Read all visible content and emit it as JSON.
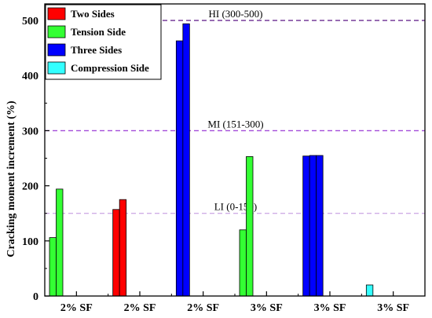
{
  "chart_data": {
    "type": "bar",
    "ylabel": "Cracking moment increment (%)",
    "xlabel": "",
    "title": "",
    "ylim": [
      0,
      530
    ],
    "yticks": [
      0,
      100,
      200,
      300,
      400,
      500
    ],
    "categories": [
      "2% SF",
      "2% SF",
      "2% SF",
      "3% SF",
      "3% SF",
      "3% SF"
    ],
    "legend_position": "top-left",
    "series": [
      {
        "name": "Two Sides",
        "color": "#ff0000"
      },
      {
        "name": "Tension Side",
        "color": "#33ff33"
      },
      {
        "name": "Three Sides",
        "color": "#0000ff"
      },
      {
        "name": "Compression Side",
        "color": "#33ffff"
      }
    ],
    "groups": [
      {
        "category_index": 0,
        "series_index": 1,
        "values": [
          106,
          194
        ]
      },
      {
        "category_index": 1,
        "series_index": 0,
        "values": [
          157,
          175
        ]
      },
      {
        "category_index": 2,
        "series_index": 2,
        "values": [
          463,
          494
        ]
      },
      {
        "category_index": 3,
        "series_index": 1,
        "values": [
          120,
          253
        ]
      },
      {
        "category_index": 4,
        "series_index": 2,
        "values": [
          254,
          255,
          255
        ]
      },
      {
        "category_index": 5,
        "series_index": 3,
        "values": [
          20
        ]
      }
    ],
    "reference_lines": [
      {
        "label": "HI (300-500)",
        "value": 500,
        "color": "#6a2c91"
      },
      {
        "label": "MI (151-300)",
        "value": 300,
        "color": "#a24bd9"
      },
      {
        "label": "LI (0-150)",
        "value": 150,
        "color": "#cfaee6"
      }
    ]
  }
}
